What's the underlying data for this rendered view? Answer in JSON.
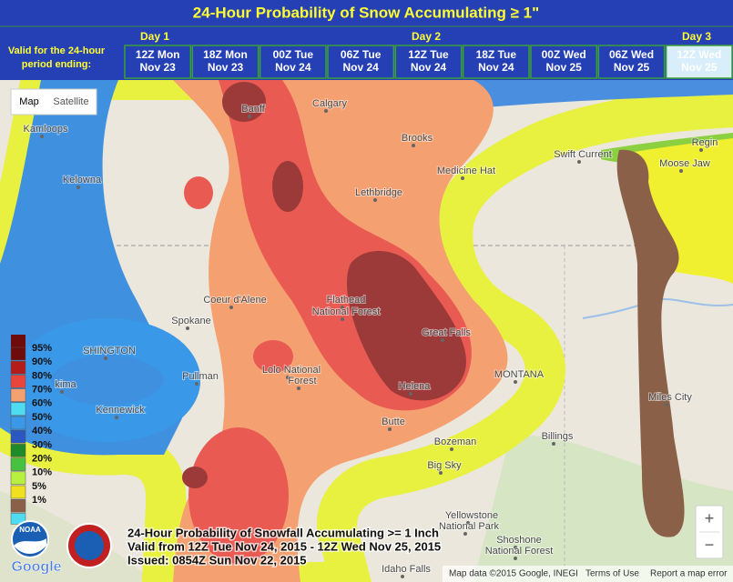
{
  "header": {
    "title": "24-Hour Probability of Snow Accumulating ≥ 1\"",
    "valid_label": [
      "Valid for the 24-hour",
      "period ending:"
    ],
    "days": [
      "Day 1",
      "Day 2",
      "Day 3"
    ],
    "periods": [
      {
        "line1": "12Z Mon",
        "line2": "Nov 23"
      },
      {
        "line1": "18Z Mon",
        "line2": "Nov 23"
      },
      {
        "line1": "00Z Tue",
        "line2": "Nov 24"
      },
      {
        "line1": "06Z Tue",
        "line2": "Nov 24"
      },
      {
        "line1": "12Z Tue",
        "line2": "Nov 24"
      },
      {
        "line1": "18Z Tue",
        "line2": "Nov 24"
      },
      {
        "line1": "00Z Wed",
        "line2": "Nov 25"
      },
      {
        "line1": "06Z Wed",
        "line2": "Nov 25"
      },
      {
        "line1": "12Z Wed",
        "line2": "Nov 25"
      }
    ]
  },
  "map": {
    "buttons": [
      "Map",
      "Satellite"
    ],
    "places": [
      "Calgary",
      "Banff",
      "Kamloops",
      "Kelowna",
      "Brooks",
      "Medicine Hat",
      "Lethbridge",
      "Swift Current",
      "Moose Jaw",
      "Regin",
      "Spokane",
      "Coeur d'Alene",
      "Pullman",
      "Kennewick",
      "kima",
      "SHINGTON",
      "Flathead",
      "National Forest",
      "Lolo National",
      "Forest",
      "Great Falls",
      "Helena",
      "Butte",
      "Bozeman",
      "Big Sky",
      "Billings",
      "MONTANA",
      "Miles City",
      "Yellowstone",
      "National Park",
      "Shoshone",
      "National Forest",
      "Idaho Falls"
    ],
    "zoom": [
      "+",
      "−"
    ]
  },
  "legend": {
    "labels": [
      "95%",
      "90%",
      "80%",
      "70%",
      "60%",
      "50%",
      "40%",
      "30%",
      "20%",
      "10%",
      "5%",
      "1%"
    ]
  },
  "caption": {
    "lines": [
      "24-Hour Probability of Snowfall Accumulating >= 1 Inch",
      "Valid from 12Z Tue Nov 24, 2015 - 12Z Wed Nov 25, 2015",
      "Issued: 0854Z Sun Nov 22, 2015"
    ]
  },
  "footer": {
    "google": "Google",
    "noaa": "NOAA",
    "attribution": "Map data ©2015 Google, INEGI",
    "terms": "Terms of Use",
    "report": "Report a map error"
  }
}
